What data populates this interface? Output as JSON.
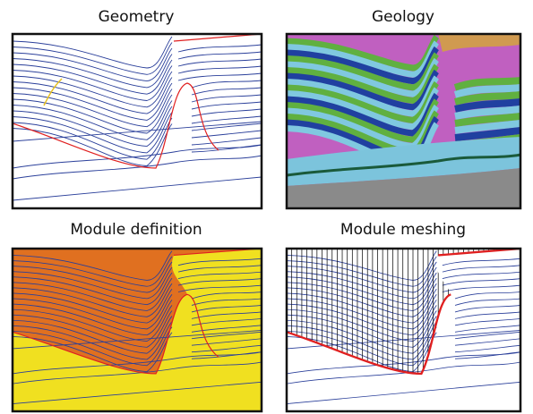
{
  "panels": [
    {
      "title": "Geometry"
    },
    {
      "title": "Geology"
    },
    {
      "title": "Module definition"
    },
    {
      "title": "Module meshing"
    }
  ]
}
